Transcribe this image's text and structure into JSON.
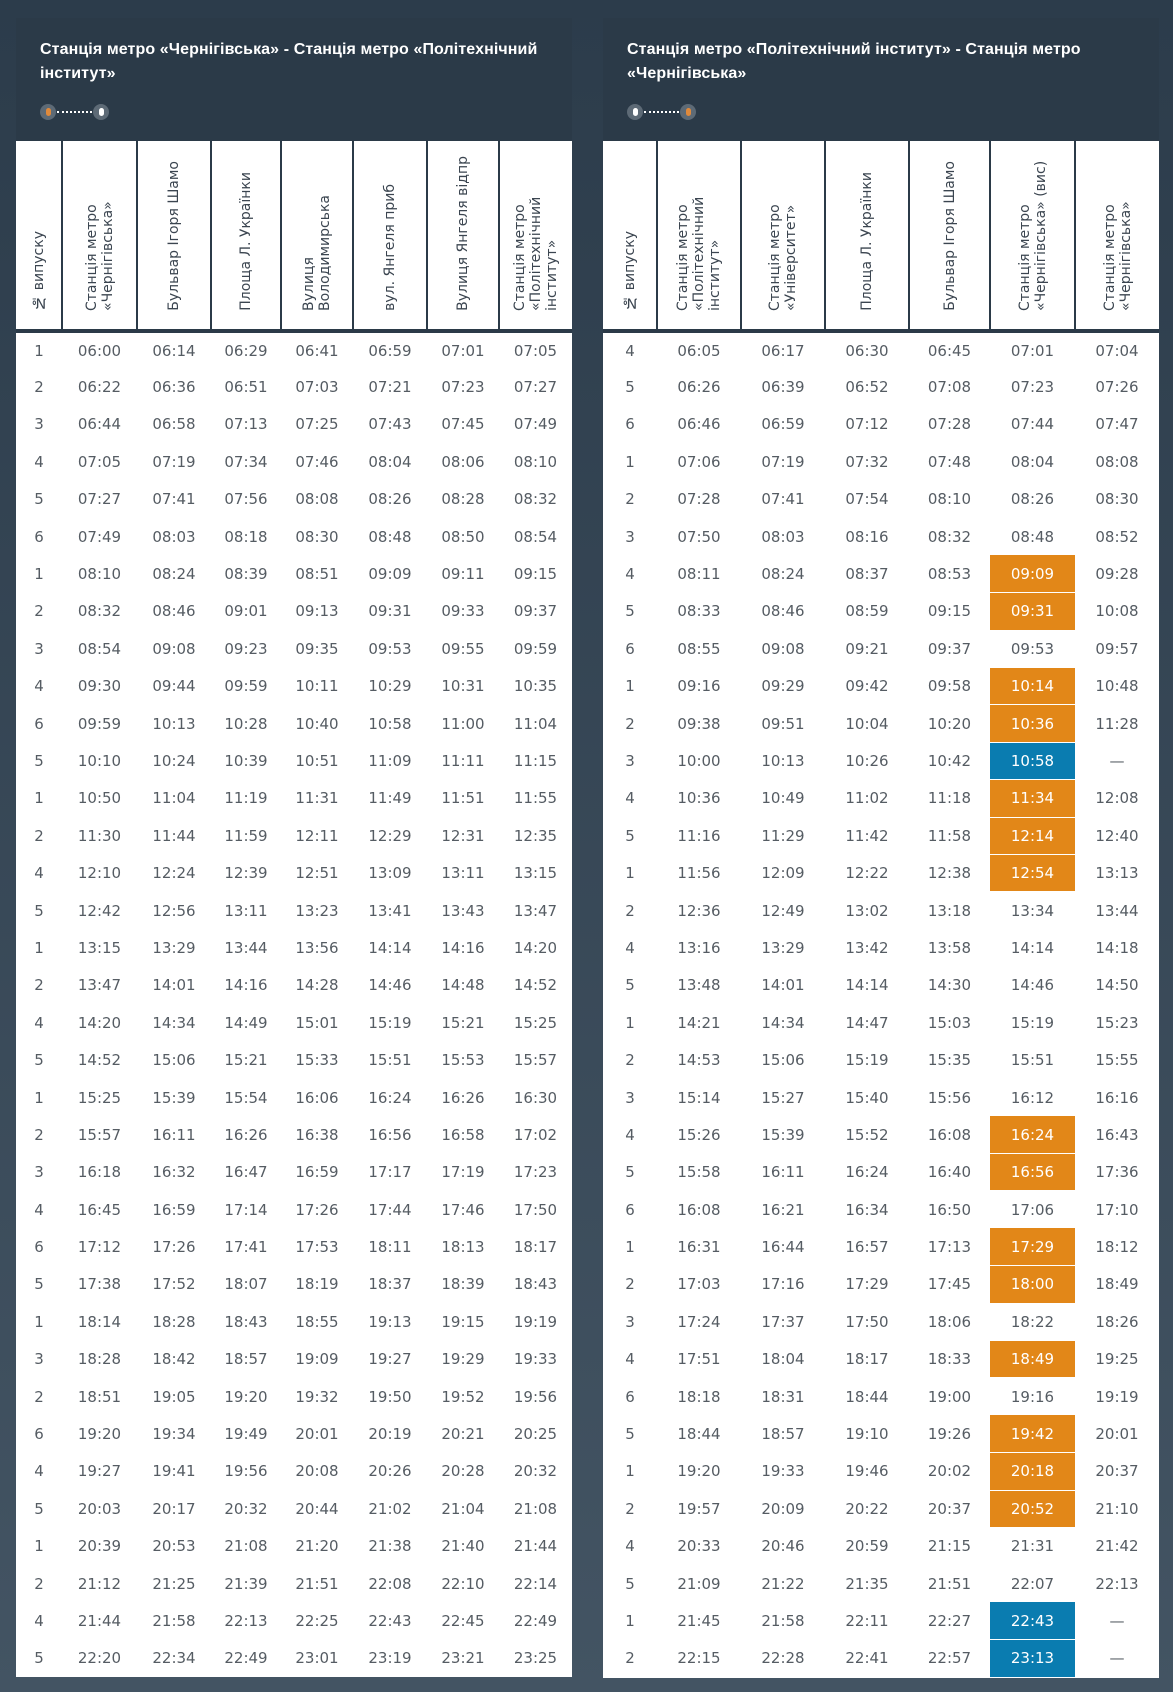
{
  "colors": {
    "highlight_orange": "#e28718",
    "highlight_blue": "#0a7cb0",
    "header_bg": "#2b3a48"
  },
  "highlight_legend_note": "",
  "panels": [
    {
      "title": "Станція метро «Чернігівська» - Станція метро «Політехнічний інститут»",
      "route_icon": "route-start-orange-end-white",
      "columns": [
        "№ випуску",
        "Станція метро «Чернігівська»",
        "Бульвар Ігоря Шамо",
        "Площа Л. Українки",
        "Вулиця Володимирська",
        "вул. Янгеля приб",
        "Вулиця Янгеля відпр",
        "Станція метро «Політехнічний інститут»"
      ],
      "rows": [
        [
          "1",
          "06:00",
          "06:14",
          "06:29",
          "06:41",
          "06:59",
          "07:01",
          "07:05"
        ],
        [
          "2",
          "06:22",
          "06:36",
          "06:51",
          "07:03",
          "07:21",
          "07:23",
          "07:27"
        ],
        [
          "3",
          "06:44",
          "06:58",
          "07:13",
          "07:25",
          "07:43",
          "07:45",
          "07:49"
        ],
        [
          "4",
          "07:05",
          "07:19",
          "07:34",
          "07:46",
          "08:04",
          "08:06",
          "08:10"
        ],
        [
          "5",
          "07:27",
          "07:41",
          "07:56",
          "08:08",
          "08:26",
          "08:28",
          "08:32"
        ],
        [
          "6",
          "07:49",
          "08:03",
          "08:18",
          "08:30",
          "08:48",
          "08:50",
          "08:54"
        ],
        [
          "1",
          "08:10",
          "08:24",
          "08:39",
          "08:51",
          "09:09",
          "09:11",
          "09:15"
        ],
        [
          "2",
          "08:32",
          "08:46",
          "09:01",
          "09:13",
          "09:31",
          "09:33",
          "09:37"
        ],
        [
          "3",
          "08:54",
          "09:08",
          "09:23",
          "09:35",
          "09:53",
          "09:55",
          "09:59"
        ],
        [
          "4",
          "09:30",
          "09:44",
          "09:59",
          "10:11",
          "10:29",
          "10:31",
          "10:35"
        ],
        [
          "6",
          "09:59",
          "10:13",
          "10:28",
          "10:40",
          "10:58",
          "11:00",
          "11:04"
        ],
        [
          "5",
          "10:10",
          "10:24",
          "10:39",
          "10:51",
          "11:09",
          "11:11",
          "11:15"
        ],
        [
          "1",
          "10:50",
          "11:04",
          "11:19",
          "11:31",
          "11:49",
          "11:51",
          "11:55"
        ],
        [
          "2",
          "11:30",
          "11:44",
          "11:59",
          "12:11",
          "12:29",
          "12:31",
          "12:35"
        ],
        [
          "4",
          "12:10",
          "12:24",
          "12:39",
          "12:51",
          "13:09",
          "13:11",
          "13:15"
        ],
        [
          "5",
          "12:42",
          "12:56",
          "13:11",
          "13:23",
          "13:41",
          "13:43",
          "13:47"
        ],
        [
          "1",
          "13:15",
          "13:29",
          "13:44",
          "13:56",
          "14:14",
          "14:16",
          "14:20"
        ],
        [
          "2",
          "13:47",
          "14:01",
          "14:16",
          "14:28",
          "14:46",
          "14:48",
          "14:52"
        ],
        [
          "4",
          "14:20",
          "14:34",
          "14:49",
          "15:01",
          "15:19",
          "15:21",
          "15:25"
        ],
        [
          "5",
          "14:52",
          "15:06",
          "15:21",
          "15:33",
          "15:51",
          "15:53",
          "15:57"
        ],
        [
          "1",
          "15:25",
          "15:39",
          "15:54",
          "16:06",
          "16:24",
          "16:26",
          "16:30"
        ],
        [
          "2",
          "15:57",
          "16:11",
          "16:26",
          "16:38",
          "16:56",
          "16:58",
          "17:02"
        ],
        [
          "3",
          "16:18",
          "16:32",
          "16:47",
          "16:59",
          "17:17",
          "17:19",
          "17:23"
        ],
        [
          "4",
          "16:45",
          "16:59",
          "17:14",
          "17:26",
          "17:44",
          "17:46",
          "17:50"
        ],
        [
          "6",
          "17:12",
          "17:26",
          "17:41",
          "17:53",
          "18:11",
          "18:13",
          "18:17"
        ],
        [
          "5",
          "17:38",
          "17:52",
          "18:07",
          "18:19",
          "18:37",
          "18:39",
          "18:43"
        ],
        [
          "1",
          "18:14",
          "18:28",
          "18:43",
          "18:55",
          "19:13",
          "19:15",
          "19:19"
        ],
        [
          "3",
          "18:28",
          "18:42",
          "18:57",
          "19:09",
          "19:27",
          "19:29",
          "19:33"
        ],
        [
          "2",
          "18:51",
          "19:05",
          "19:20",
          "19:32",
          "19:50",
          "19:52",
          "19:56"
        ],
        [
          "6",
          "19:20",
          "19:34",
          "19:49",
          "20:01",
          "20:19",
          "20:21",
          "20:25"
        ],
        [
          "4",
          "19:27",
          "19:41",
          "19:56",
          "20:08",
          "20:26",
          "20:28",
          "20:32"
        ],
        [
          "5",
          "20:03",
          "20:17",
          "20:32",
          "20:44",
          "21:02",
          "21:04",
          "21:08"
        ],
        [
          "1",
          "20:39",
          "20:53",
          "21:08",
          "21:20",
          "21:38",
          "21:40",
          "21:44"
        ],
        [
          "2",
          "21:12",
          "21:25",
          "21:39",
          "21:51",
          "22:08",
          "22:10",
          "22:14"
        ],
        [
          "4",
          "21:44",
          "21:58",
          "22:13",
          "22:25",
          "22:43",
          "22:45",
          "22:49"
        ],
        [
          "5",
          "22:20",
          "22:34",
          "22:49",
          "23:01",
          "23:19",
          "23:21",
          "23:25"
        ]
      ],
      "highlights": {}
    },
    {
      "title": "Станція метро «Політехнічний інститут» - Станція метро «Чернігівська»",
      "route_icon": "route-start-white-end-orange",
      "columns": [
        "№ випуску",
        "Станція метро «Політехнічний інститут»",
        "Станція метро «Університет»",
        "Площа Л. Українки",
        "Бульвар Ігоря Шамо",
        "Станція метро «Чернігівська» (вис)",
        "Станція метро «Чернігівська»"
      ],
      "rows": [
        [
          "4",
          "06:05",
          "06:17",
          "06:30",
          "06:45",
          "07:01",
          "07:04"
        ],
        [
          "5",
          "06:26",
          "06:39",
          "06:52",
          "07:08",
          "07:23",
          "07:26"
        ],
        [
          "6",
          "06:46",
          "06:59",
          "07:12",
          "07:28",
          "07:44",
          "07:47"
        ],
        [
          "1",
          "07:06",
          "07:19",
          "07:32",
          "07:48",
          "08:04",
          "08:08"
        ],
        [
          "2",
          "07:28",
          "07:41",
          "07:54",
          "08:10",
          "08:26",
          "08:30"
        ],
        [
          "3",
          "07:50",
          "08:03",
          "08:16",
          "08:32",
          "08:48",
          "08:52"
        ],
        [
          "4",
          "08:11",
          "08:24",
          "08:37",
          "08:53",
          "09:09",
          "09:28"
        ],
        [
          "5",
          "08:33",
          "08:46",
          "08:59",
          "09:15",
          "09:31",
          "10:08"
        ],
        [
          "6",
          "08:55",
          "09:08",
          "09:21",
          "09:37",
          "09:53",
          "09:57"
        ],
        [
          "1",
          "09:16",
          "09:29",
          "09:42",
          "09:58",
          "10:14",
          "10:48"
        ],
        [
          "2",
          "09:38",
          "09:51",
          "10:04",
          "10:20",
          "10:36",
          "11:28"
        ],
        [
          "3",
          "10:00",
          "10:13",
          "10:26",
          "10:42",
          "10:58",
          "—"
        ],
        [
          "4",
          "10:36",
          "10:49",
          "11:02",
          "11:18",
          "11:34",
          "12:08"
        ],
        [
          "5",
          "11:16",
          "11:29",
          "11:42",
          "11:58",
          "12:14",
          "12:40"
        ],
        [
          "1",
          "11:56",
          "12:09",
          "12:22",
          "12:38",
          "12:54",
          "13:13"
        ],
        [
          "2",
          "12:36",
          "12:49",
          "13:02",
          "13:18",
          "13:34",
          "13:44"
        ],
        [
          "4",
          "13:16",
          "13:29",
          "13:42",
          "13:58",
          "14:14",
          "14:18"
        ],
        [
          "5",
          "13:48",
          "14:01",
          "14:14",
          "14:30",
          "14:46",
          "14:50"
        ],
        [
          "1",
          "14:21",
          "14:34",
          "14:47",
          "15:03",
          "15:19",
          "15:23"
        ],
        [
          "2",
          "14:53",
          "15:06",
          "15:19",
          "15:35",
          "15:51",
          "15:55"
        ],
        [
          "3",
          "15:14",
          "15:27",
          "15:40",
          "15:56",
          "16:12",
          "16:16"
        ],
        [
          "4",
          "15:26",
          "15:39",
          "15:52",
          "16:08",
          "16:24",
          "16:43"
        ],
        [
          "5",
          "15:58",
          "16:11",
          "16:24",
          "16:40",
          "16:56",
          "17:36"
        ],
        [
          "6",
          "16:08",
          "16:21",
          "16:34",
          "16:50",
          "17:06",
          "17:10"
        ],
        [
          "1",
          "16:31",
          "16:44",
          "16:57",
          "17:13",
          "17:29",
          "18:12"
        ],
        [
          "2",
          "17:03",
          "17:16",
          "17:29",
          "17:45",
          "18:00",
          "18:49"
        ],
        [
          "3",
          "17:24",
          "17:37",
          "17:50",
          "18:06",
          "18:22",
          "18:26"
        ],
        [
          "4",
          "17:51",
          "18:04",
          "18:17",
          "18:33",
          "18:49",
          "19:25"
        ],
        [
          "6",
          "18:18",
          "18:31",
          "18:44",
          "19:00",
          "19:16",
          "19:19"
        ],
        [
          "5",
          "18:44",
          "18:57",
          "19:10",
          "19:26",
          "19:42",
          "20:01"
        ],
        [
          "1",
          "19:20",
          "19:33",
          "19:46",
          "20:02",
          "20:18",
          "20:37"
        ],
        [
          "2",
          "19:57",
          "20:09",
          "20:22",
          "20:37",
          "20:52",
          "21:10"
        ],
        [
          "4",
          "20:33",
          "20:46",
          "20:59",
          "21:15",
          "21:31",
          "21:42"
        ],
        [
          "5",
          "21:09",
          "21:22",
          "21:35",
          "21:51",
          "22:07",
          "22:13"
        ],
        [
          "1",
          "21:45",
          "21:58",
          "22:11",
          "22:27",
          "22:43",
          "—"
        ],
        [
          "2",
          "22:15",
          "22:28",
          "22:41",
          "22:57",
          "23:13",
          "—"
        ]
      ],
      "highlight_column": 5,
      "highlights": {
        "6": "orange",
        "7": "orange",
        "9": "orange",
        "10": "orange",
        "11": "blue",
        "12": "orange",
        "13": "orange",
        "14": "orange",
        "21": "orange",
        "22": "orange",
        "24": "orange",
        "25": "orange",
        "27": "orange",
        "29": "orange",
        "30": "orange",
        "31": "orange",
        "34": "blue",
        "35": "blue"
      }
    }
  ]
}
